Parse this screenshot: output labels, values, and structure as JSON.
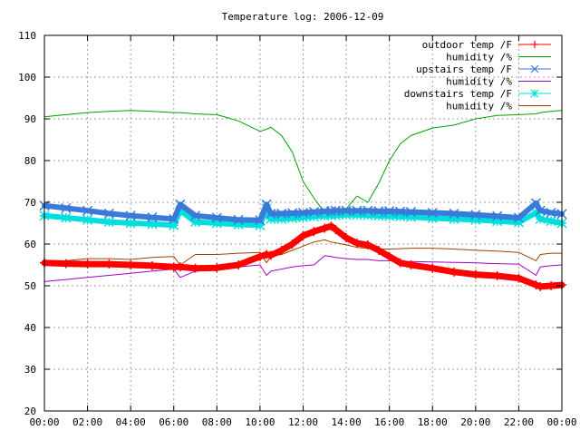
{
  "chart_data": {
    "type": "line",
    "title": "Temperature log: 2006-12-09",
    "xlabel": "",
    "ylabel": "",
    "xlim": [
      0,
      24
    ],
    "ylim": [
      20,
      110
    ],
    "grid": true,
    "legend_placement": "top-right",
    "x_tick_labels": [
      "00:00",
      "02:00",
      "04:00",
      "06:00",
      "08:00",
      "10:00",
      "12:00",
      "14:00",
      "16:00",
      "18:00",
      "20:00",
      "22:00",
      "00:00"
    ],
    "x_ticks": [
      0,
      2,
      4,
      6,
      8,
      10,
      12,
      14,
      16,
      18,
      20,
      22,
      24
    ],
    "y_tick_labels": [
      "20",
      "30",
      "40",
      "50",
      "60",
      "70",
      "80",
      "90",
      "100",
      "110"
    ],
    "y_ticks": [
      20,
      30,
      40,
      50,
      60,
      70,
      80,
      90,
      100,
      110
    ],
    "x": [
      0,
      1,
      2,
      3,
      4,
      5,
      6,
      6.3,
      7,
      8,
      9,
      10,
      10.3,
      10.5,
      11,
      11.5,
      12,
      12.5,
      13,
      13.3,
      13.5,
      14,
      14.5,
      15,
      15.5,
      16,
      16.5,
      17,
      18,
      19,
      20,
      21,
      22,
      22.8,
      23,
      23.5,
      24
    ],
    "series": [
      {
        "name": "outdoor temp /F",
        "color": "#ff0000",
        "width": 7,
        "marker": "plus",
        "values": [
          55.5,
          55.3,
          55.2,
          55.2,
          55.0,
          54.8,
          54.5,
          54.5,
          54.2,
          54.3,
          55.0,
          57.0,
          57.5,
          57.3,
          58.5,
          60.0,
          62.0,
          63.0,
          63.8,
          64.3,
          63.5,
          61.5,
          60.2,
          59.8,
          58.5,
          57.0,
          55.5,
          55.0,
          54.2,
          53.3,
          52.7,
          52.4,
          51.8,
          50.2,
          49.8,
          50.0,
          50.2
        ]
      },
      {
        "name": "humidity /%",
        "color": "#00a000",
        "width": 1,
        "marker": "",
        "values": [
          90.5,
          91.0,
          91.5,
          91.8,
          92.0,
          91.8,
          91.5,
          91.5,
          91.2,
          91.0,
          89.5,
          87.0,
          87.5,
          88.0,
          86.0,
          82.0,
          75.0,
          71.0,
          67.5,
          67.5,
          67.8,
          68.5,
          71.5,
          70.0,
          74.5,
          80.0,
          84.0,
          86.0,
          87.8,
          88.5,
          90.0,
          90.8,
          91.0,
          91.2,
          91.5,
          91.8,
          92.0
        ]
      },
      {
        "name": "upstairs temp /F",
        "color": "#3a7ad8",
        "width": 6,
        "marker": "x",
        "values": [
          69.2,
          68.6,
          68.0,
          67.3,
          66.8,
          66.4,
          66.0,
          69.5,
          66.8,
          66.3,
          65.8,
          65.7,
          69.5,
          67.3,
          67.3,
          67.4,
          67.5,
          67.7,
          67.9,
          67.9,
          68.0,
          68.0,
          68.0,
          68.0,
          67.9,
          67.9,
          67.8,
          67.7,
          67.5,
          67.3,
          67.0,
          66.7,
          66.3,
          69.8,
          68.0,
          67.5,
          67.2
        ]
      },
      {
        "name": "humidity /%",
        "color": "#a000d0",
        "width": 1,
        "marker": "",
        "values": [
          51.0,
          51.5,
          52.0,
          52.5,
          53.0,
          53.5,
          54.0,
          52.0,
          53.5,
          54.0,
          54.5,
          55.0,
          52.5,
          53.5,
          54.0,
          54.5,
          54.8,
          55.0,
          57.2,
          57.0,
          56.8,
          56.5,
          56.3,
          56.3,
          56.0,
          56.0,
          55.9,
          55.8,
          55.7,
          55.6,
          55.5,
          55.3,
          55.2,
          52.5,
          54.5,
          54.8,
          55.0
        ]
      },
      {
        "name": "downstairs temp /F",
        "color": "#00dede",
        "width": 6,
        "marker": "star",
        "values": [
          66.8,
          66.3,
          65.8,
          65.3,
          65.0,
          64.8,
          64.5,
          68.0,
          65.3,
          65.0,
          64.7,
          64.5,
          68.5,
          66.0,
          66.0,
          66.2,
          66.4,
          66.6,
          66.8,
          66.9,
          66.9,
          67.0,
          67.0,
          66.9,
          66.8,
          66.7,
          66.6,
          66.5,
          66.2,
          66.0,
          65.8,
          65.5,
          65.2,
          67.5,
          66.0,
          65.5,
          65.0
        ]
      },
      {
        "name": "humidity /%",
        "color": "#a04000",
        "width": 1,
        "marker": "",
        "values": [
          55.0,
          56.0,
          56.5,
          56.5,
          56.3,
          56.8,
          57.0,
          55.0,
          57.5,
          57.5,
          57.8,
          58.0,
          55.5,
          57.0,
          57.5,
          58.5,
          59.5,
          60.5,
          61.0,
          60.5,
          60.3,
          59.8,
          59.2,
          59.0,
          58.8,
          58.8,
          58.9,
          59.0,
          59.0,
          58.8,
          58.5,
          58.3,
          58.0,
          56.0,
          57.5,
          57.8,
          57.8
        ]
      }
    ]
  }
}
